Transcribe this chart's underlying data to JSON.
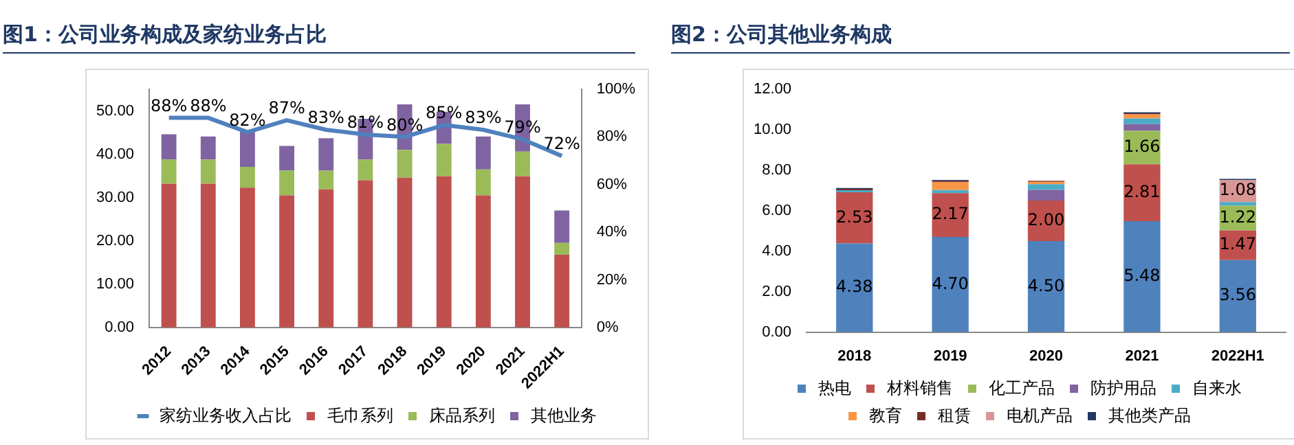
{
  "chart_data": [
    {
      "type": "bar",
      "title": "图1：公司业务构成及家纺业务占比",
      "stacked": true,
      "legend": "bottom",
      "grid": false,
      "categories": [
        "2012",
        "2013",
        "2014",
        "2015",
        "2016",
        "2017",
        "2018",
        "2019",
        "2020",
        "2021",
        "2022H1"
      ],
      "ylim": [
        0,
        55
      ],
      "yticks": [
        {
          "value": 0,
          "label": "0.00"
        },
        {
          "value": 10,
          "label": "10.00"
        },
        {
          "value": 20,
          "label": "20.00"
        },
        {
          "value": 30,
          "label": "30.00"
        },
        {
          "value": 40,
          "label": "40.00"
        },
        {
          "value": 50,
          "label": "50.00"
        }
      ],
      "y2lim": [
        0,
        100
      ],
      "y2ticks": [
        {
          "value": 0,
          "label": "0%"
        },
        {
          "value": 20,
          "label": "20%"
        },
        {
          "value": 40,
          "label": "40%"
        },
        {
          "value": 60,
          "label": "60%"
        },
        {
          "value": 80,
          "label": "80%"
        },
        {
          "value": 100,
          "label": "100%"
        }
      ],
      "series": [
        {
          "name": "毛巾系列",
          "color": "#c0504d",
          "values": [
            33.2,
            33.2,
            32.3,
            30.5,
            31.9,
            34.0,
            34.6,
            34.9,
            30.5,
            34.9,
            16.8
          ]
        },
        {
          "name": "床品系列",
          "color": "#9bbb59",
          "values": [
            5.6,
            5.6,
            4.8,
            5.7,
            4.3,
            4.8,
            6.4,
            7.5,
            6.0,
            5.7,
            2.7
          ]
        },
        {
          "name": "其他业务",
          "color": "#8064a2",
          "values": [
            5.8,
            5.3,
            8.4,
            5.7,
            7.5,
            9.4,
            10.5,
            7.4,
            7.6,
            10.9,
            7.5
          ]
        },
        {
          "name": "家纺业务收入占比",
          "type": "line",
          "axis": "y2",
          "color": "#4f81bd",
          "values": [
            88,
            88,
            82,
            87,
            83,
            81,
            80,
            85,
            83,
            79,
            72
          ],
          "value_labels": [
            "88%",
            "88%",
            "82%",
            "87%",
            "83%",
            "81%",
            "80%",
            "85%",
            "83%",
            "79%",
            "72%"
          ]
        }
      ]
    },
    {
      "type": "bar",
      "title": "图2：公司其他业务构成",
      "stacked": true,
      "legend": "bottom",
      "grid": false,
      "categories": [
        "2018",
        "2019",
        "2020",
        "2021",
        "2022H1"
      ],
      "ylim": [
        0,
        12
      ],
      "yticks": [
        {
          "value": 0,
          "label": "0.00"
        },
        {
          "value": 2,
          "label": "2.00"
        },
        {
          "value": 4,
          "label": "4.00"
        },
        {
          "value": 6,
          "label": "6.00"
        },
        {
          "value": 8,
          "label": "8.00"
        },
        {
          "value": 10,
          "label": "10.00"
        },
        {
          "value": 12,
          "label": "12.00"
        }
      ],
      "series": [
        {
          "name": "热电",
          "color": "#4f81bd",
          "values": [
            4.38,
            4.7,
            4.5,
            5.48,
            3.56
          ],
          "value_labels": [
            "4.38",
            "4.70",
            "4.50",
            "5.48",
            "3.56"
          ]
        },
        {
          "name": "材料销售",
          "color": "#c0504d",
          "values": [
            2.53,
            2.17,
            2.0,
            2.81,
            1.47
          ],
          "value_labels": [
            "2.53",
            "2.17",
            "2.00",
            "2.81",
            "1.47"
          ]
        },
        {
          "name": "化工产品",
          "color": "#9bbb59",
          "values": [
            0,
            0,
            0,
            1.66,
            1.22
          ],
          "value_labels": [
            null,
            null,
            null,
            "1.66",
            "1.22"
          ]
        },
        {
          "name": "防护用品",
          "color": "#8064a2",
          "values": [
            0,
            0,
            0.53,
            0.33,
            0
          ]
        },
        {
          "name": "自来水",
          "color": "#4bacc6",
          "values": [
            0.1,
            0.15,
            0.28,
            0.28,
            0.18
          ]
        },
        {
          "name": "教育",
          "color": "#f79646",
          "values": [
            0,
            0.4,
            0.12,
            0.2,
            0
          ]
        },
        {
          "name": "租赁",
          "color": "#772c2a",
          "values": [
            0.07,
            0.05,
            0.05,
            0.05,
            0
          ]
        },
        {
          "name": "电机产品",
          "color": "#d99694",
          "values": [
            0,
            0,
            0,
            0,
            1.08
          ],
          "value_labels": [
            null,
            null,
            null,
            null,
            "1.08"
          ]
        },
        {
          "name": "其他类产品",
          "color": "#1f3864",
          "values": [
            0.04,
            0.05,
            0,
            0.05,
            0.06
          ]
        }
      ]
    }
  ]
}
